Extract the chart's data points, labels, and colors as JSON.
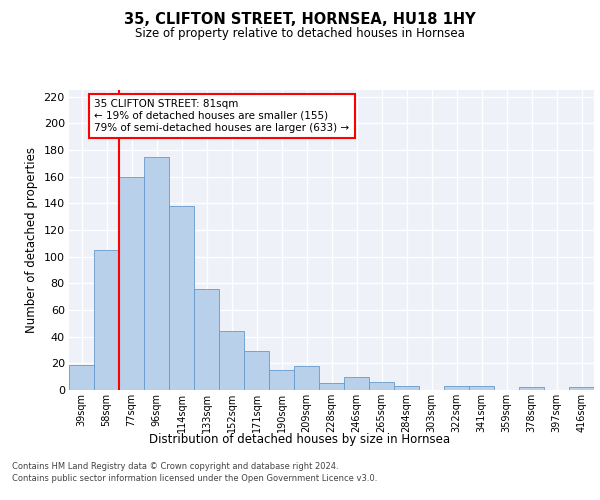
{
  "title": "35, CLIFTON STREET, HORNSEA, HU18 1HY",
  "subtitle": "Size of property relative to detached houses in Hornsea",
  "xlabel": "Distribution of detached houses by size in Hornsea",
  "ylabel": "Number of detached properties",
  "categories": [
    "39sqm",
    "58sqm",
    "77sqm",
    "96sqm",
    "114sqm",
    "133sqm",
    "152sqm",
    "171sqm",
    "190sqm",
    "209sqm",
    "228sqm",
    "246sqm",
    "265sqm",
    "284sqm",
    "303sqm",
    "322sqm",
    "341sqm",
    "359sqm",
    "378sqm",
    "397sqm",
    "416sqm"
  ],
  "values": [
    19,
    105,
    160,
    175,
    138,
    76,
    44,
    29,
    15,
    18,
    5,
    10,
    6,
    3,
    0,
    3,
    3,
    0,
    2,
    0,
    2
  ],
  "bar_color": "#b8d0ea",
  "bar_edge_color": "#6699cc",
  "red_line_x": 1.5,
  "annotation_text": "35 CLIFTON STREET: 81sqm\n← 19% of detached houses are smaller (155)\n79% of semi-detached houses are larger (633) →",
  "ylim": [
    0,
    225
  ],
  "yticks": [
    0,
    20,
    40,
    60,
    80,
    100,
    120,
    140,
    160,
    180,
    200,
    220
  ],
  "footer_line1": "Contains HM Land Registry data © Crown copyright and database right 2024.",
  "footer_line2": "Contains public sector information licensed under the Open Government Licence v3.0.",
  "background_color": "#eef2f8"
}
